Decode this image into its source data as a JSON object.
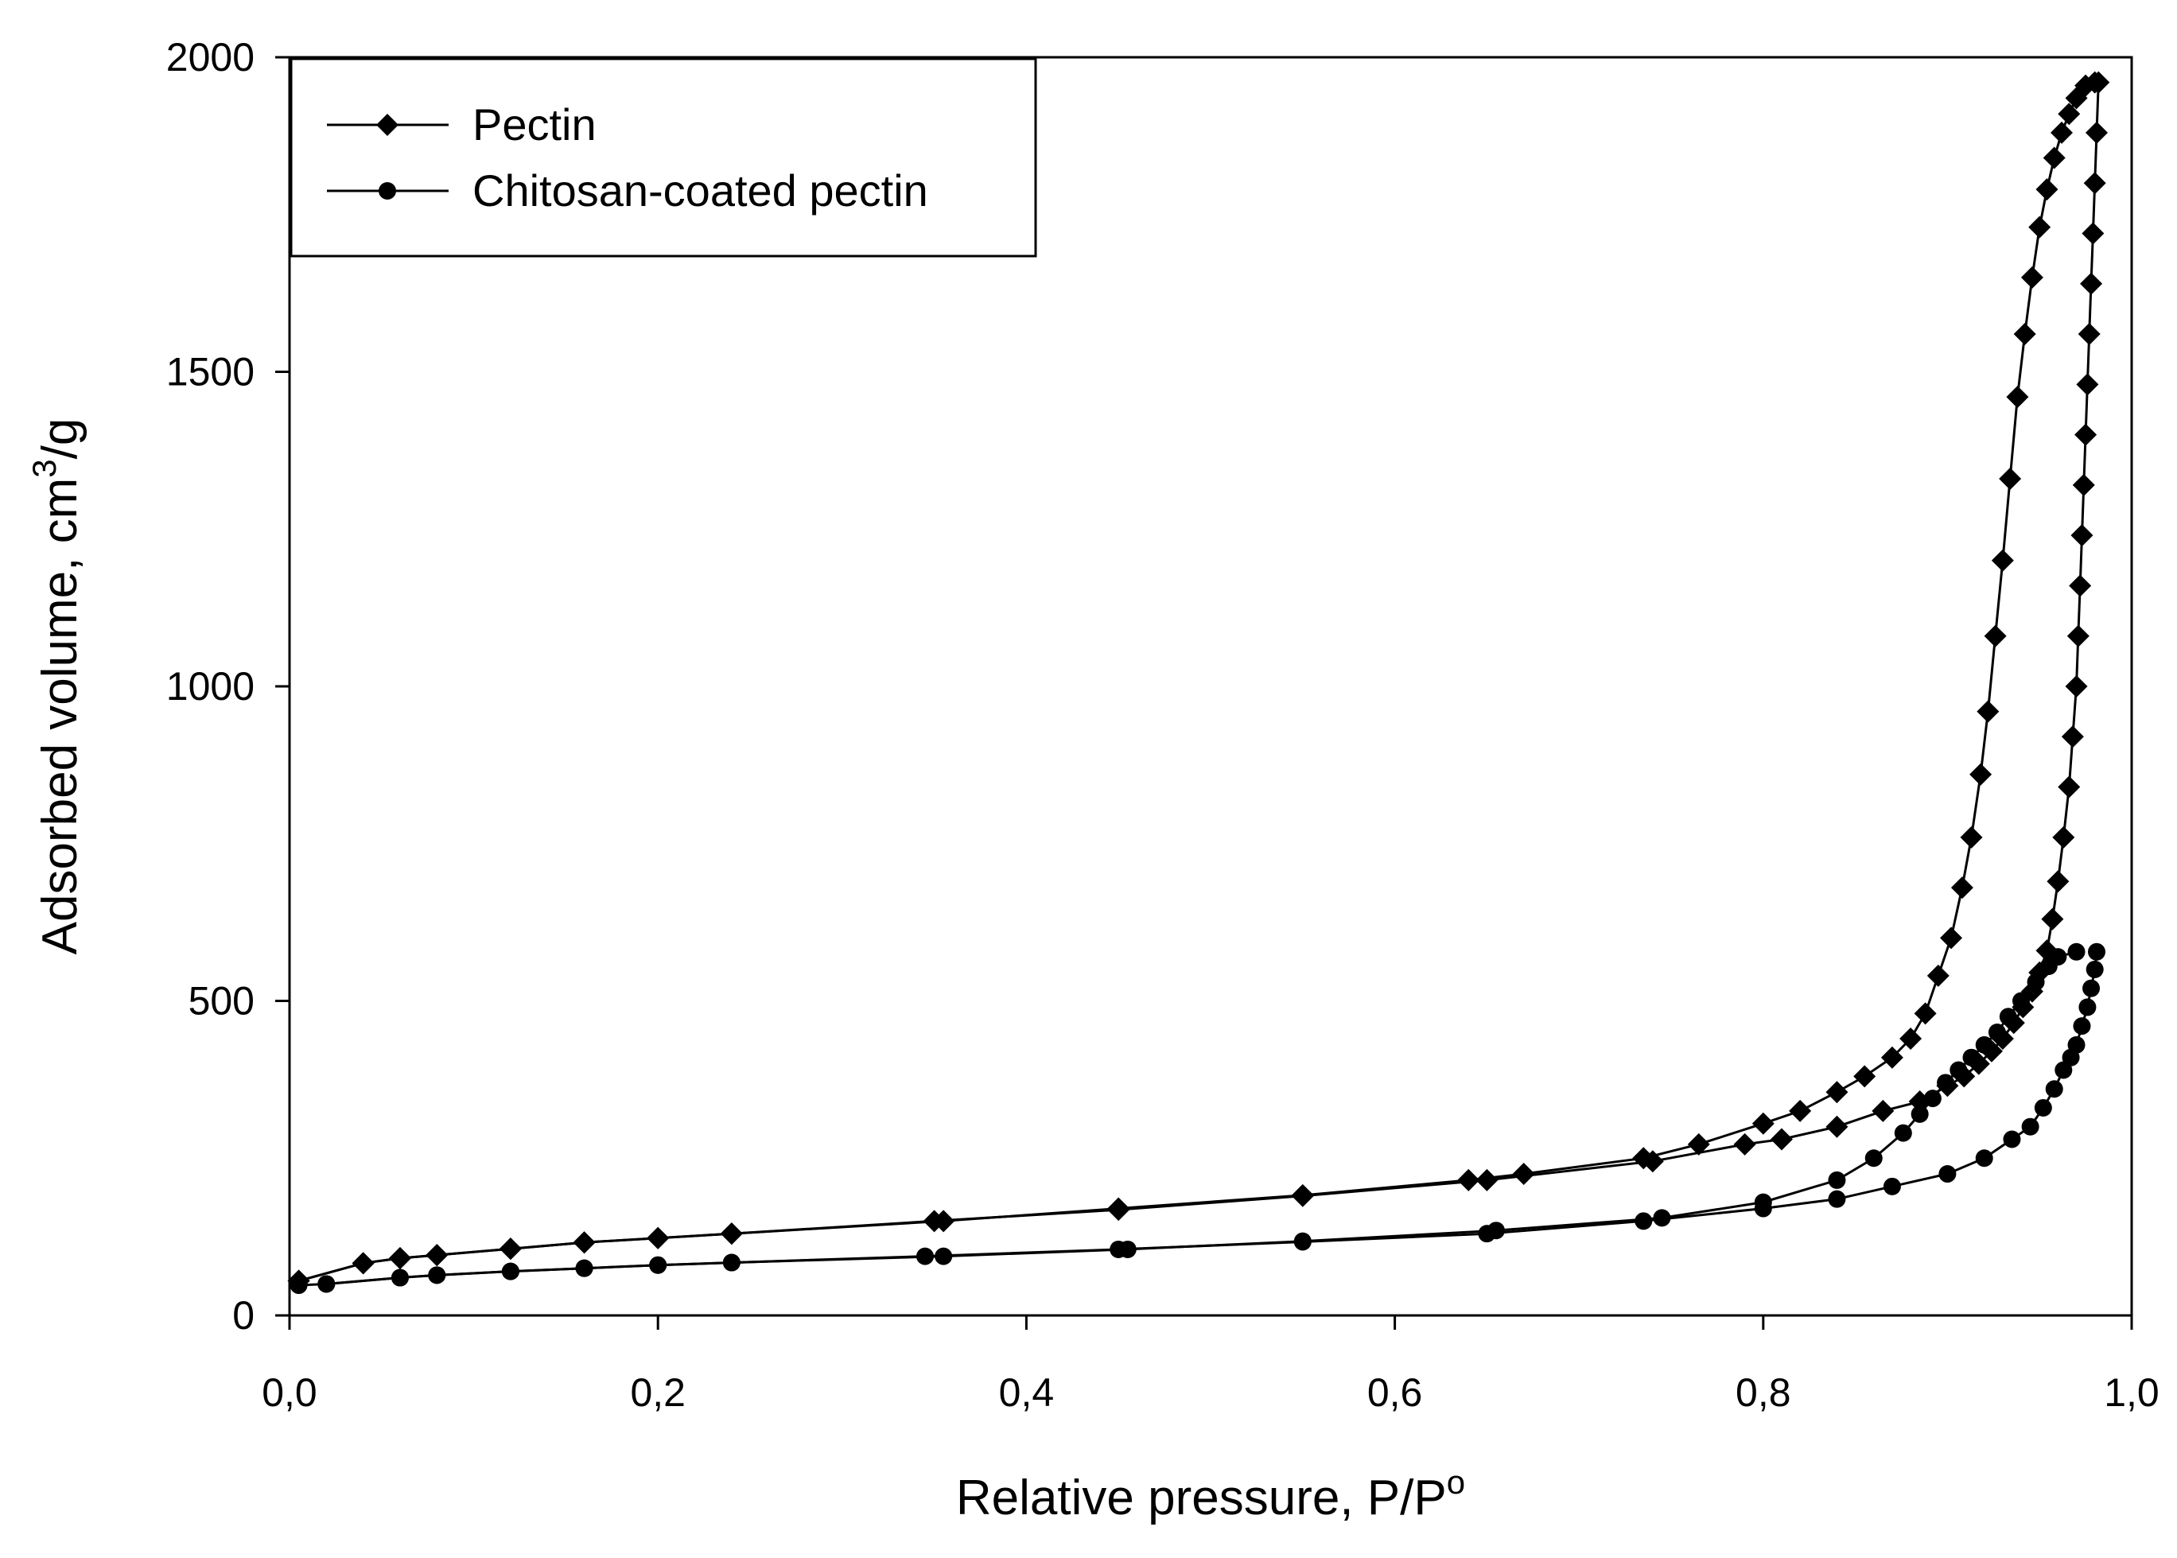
{
  "chart_data": {
    "type": "scatter",
    "title": "",
    "xlabel": "Relative pressure, P/P",
    "xlabel_superscript": "o",
    "ylabel": "Adsorbed volume, cm",
    "ylabel_superscript": "3",
    "ylabel_suffix": "/g",
    "xlim": [
      0,
      1.0
    ],
    "ylim": [
      0,
      2000
    ],
    "x_ticks": [
      0.0,
      0.2,
      0.4,
      0.6,
      0.8,
      1.0
    ],
    "x_tick_labels": [
      "0,0",
      "0,2",
      "0,4",
      "0,6",
      "0,8",
      "1,0"
    ],
    "y_ticks": [
      0,
      500,
      1000,
      1500,
      2000
    ],
    "y_tick_labels": [
      "0",
      "500",
      "1000",
      "1500",
      "2000"
    ],
    "grid": false,
    "legend_position": "top-left",
    "series": [
      {
        "name": "Pectin",
        "marker": "diamond",
        "adsorption": {
          "x": [
            0.005,
            0.04,
            0.06,
            0.08,
            0.12,
            0.16,
            0.2,
            0.24,
            0.355,
            0.45,
            0.55,
            0.64,
            0.67,
            0.735,
            0.765,
            0.8,
            0.82,
            0.84,
            0.855,
            0.87,
            0.88,
            0.888,
            0.895,
            0.902,
            0.908,
            0.913,
            0.918,
            0.922,
            0.926,
            0.93,
            0.934,
            0.938,
            0.942,
            0.946,
            0.95,
            0.954,
            0.958,
            0.962,
            0.966,
            0.97,
            0.975,
            0.98
          ],
          "y": [
            55,
            83,
            91,
            96,
            106,
            116,
            123,
            130,
            150,
            170,
            191,
            215,
            225,
            250,
            272,
            305,
            325,
            355,
            380,
            410,
            440,
            480,
            540,
            600,
            680,
            760,
            860,
            960,
            1080,
            1200,
            1330,
            1460,
            1560,
            1650,
            1730,
            1790,
            1840,
            1880,
            1910,
            1935,
            1955,
            1960
          ]
        },
        "desorption": {
          "x": [
            0.982,
            0.981,
            0.98,
            0.979,
            0.978,
            0.977,
            0.976,
            0.975,
            0.974,
            0.973,
            0.972,
            0.971,
            0.97,
            0.968,
            0.966,
            0.963,
            0.96,
            0.957,
            0.954,
            0.95,
            0.946,
            0.941,
            0.936,
            0.93,
            0.924,
            0.917,
            0.909,
            0.9,
            0.885,
            0.865,
            0.84,
            0.81,
            0.79,
            0.74,
            0.65,
            0.55,
            0.45,
            0.35,
            0.24,
            0.2,
            0.16,
            0.12,
            0.08,
            0.06,
            0.04,
            0.005
          ],
          "y": [
            1960,
            1880,
            1800,
            1720,
            1640,
            1560,
            1480,
            1400,
            1320,
            1240,
            1160,
            1080,
            1000,
            920,
            840,
            760,
            690,
            630,
            580,
            545,
            515,
            490,
            465,
            440,
            420,
            400,
            380,
            365,
            340,
            325,
            300,
            280,
            272,
            245,
            215,
            190,
            168,
            150,
            130,
            123,
            116,
            106,
            96,
            91,
            83,
            55
          ]
        }
      },
      {
        "name": "Chitosan-coated pectin",
        "marker": "circle",
        "adsorption": {
          "x": [
            0.02,
            0.06,
            0.08,
            0.12,
            0.16,
            0.2,
            0.24,
            0.345,
            0.45,
            0.55,
            0.65,
            0.735,
            0.8,
            0.84,
            0.87,
            0.9,
            0.92,
            0.935,
            0.945,
            0.952,
            0.958,
            0.963,
            0.967,
            0.97,
            0.973,
            0.976,
            0.978,
            0.98,
            0.981
          ],
          "y": [
            50,
            60,
            64,
            70,
            75,
            80,
            84,
            94,
            105,
            117,
            130,
            150,
            170,
            185,
            205,
            225,
            250,
            280,
            300,
            330,
            360,
            390,
            410,
            430,
            460,
            490,
            520,
            550,
            578
          ]
        },
        "desorption": {
          "x": [
            0.97,
            0.96,
            0.955,
            0.948,
            0.94,
            0.933,
            0.927,
            0.92,
            0.913,
            0.906,
            0.899,
            0.892,
            0.885,
            0.876,
            0.86,
            0.84,
            0.8,
            0.745,
            0.655,
            0.55,
            0.455,
            0.355,
            0.24,
            0.2,
            0.16,
            0.12,
            0.08,
            0.06,
            0.02,
            0.005
          ],
          "y": [
            578,
            570,
            555,
            530,
            500,
            475,
            450,
            430,
            410,
            390,
            370,
            345,
            320,
            290,
            250,
            215,
            180,
            155,
            135,
            118,
            105,
            94,
            84,
            80,
            75,
            70,
            64,
            60,
            50,
            48
          ]
        }
      }
    ]
  }
}
